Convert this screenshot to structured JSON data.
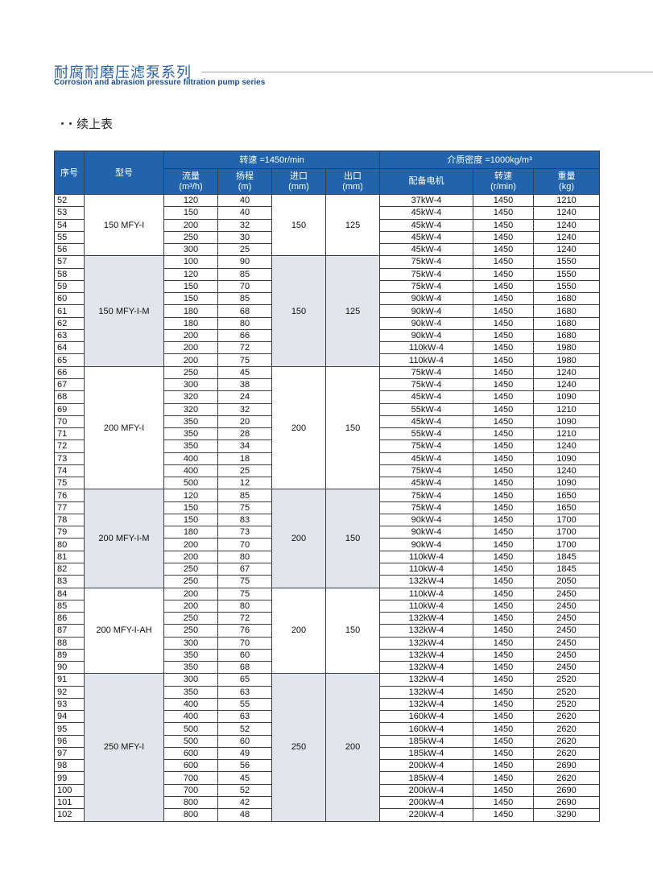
{
  "header": {
    "title": "耐腐耐磨压滤泵系列",
    "subtitle": "Corrosion and abrasion pressure filtration pump series"
  },
  "section_label": "续上表",
  "table": {
    "columns": {
      "seq": "序号",
      "model": "型号",
      "speed_note": "转速 =1450r/min",
      "density_note": "介质密度 =1000kg/m³",
      "flow": [
        "流量",
        "(m³/h)"
      ],
      "head": [
        "扬程",
        "(m)"
      ],
      "inlet": [
        "进口",
        "(mm)"
      ],
      "outlet": [
        "出口",
        "(mm)"
      ],
      "motor": "配备电机",
      "speed": [
        "转速",
        "(r/min)"
      ],
      "weight": [
        "重量",
        "(kg)"
      ]
    },
    "groups": [
      {
        "model": "150 MFY-I",
        "inlet": 150,
        "outlet": 125,
        "rows": [
          [
            52,
            120,
            40,
            "37kW-4",
            1450,
            1210
          ],
          [
            53,
            150,
            40,
            "45kW-4",
            1450,
            1240
          ],
          [
            54,
            200,
            32,
            "45kW-4",
            1450,
            1240
          ],
          [
            55,
            250,
            30,
            "45kW-4",
            1450,
            1240
          ],
          [
            56,
            300,
            25,
            "45kW-4",
            1450,
            1240
          ]
        ]
      },
      {
        "model": "150 MFY-I-M",
        "inlet": 150,
        "outlet": 125,
        "rows": [
          [
            57,
            100,
            90,
            "75kW-4",
            1450,
            1550
          ],
          [
            58,
            120,
            85,
            "75kW-4",
            1450,
            1550
          ],
          [
            59,
            150,
            70,
            "75kW-4",
            1450,
            1550
          ],
          [
            60,
            150,
            85,
            "90kW-4",
            1450,
            1680
          ],
          [
            61,
            180,
            68,
            "90kW-4",
            1450,
            1680
          ],
          [
            62,
            180,
            80,
            "90kW-4",
            1450,
            1680
          ],
          [
            63,
            200,
            66,
            "90kW-4",
            1450,
            1680
          ],
          [
            64,
            200,
            72,
            "110kW-4",
            1450,
            1980
          ],
          [
            65,
            200,
            75,
            "110kW-4",
            1450,
            1980
          ]
        ]
      },
      {
        "model": "200 MFY-I",
        "inlet": 200,
        "outlet": 150,
        "rows": [
          [
            66,
            250,
            45,
            "75kW-4",
            1450,
            1240
          ],
          [
            67,
            300,
            38,
            "75kW-4",
            1450,
            1240
          ],
          [
            68,
            320,
            24,
            "45kW-4",
            1450,
            1090
          ],
          [
            69,
            320,
            32,
            "55kW-4",
            1450,
            1210
          ],
          [
            70,
            350,
            20,
            "45kW-4",
            1450,
            1090
          ],
          [
            71,
            350,
            28,
            "55kW-4",
            1450,
            1210
          ],
          [
            72,
            350,
            34,
            "75kW-4",
            1450,
            1240
          ],
          [
            73,
            400,
            18,
            "45kW-4",
            1450,
            1090
          ],
          [
            74,
            400,
            25,
            "75kW-4",
            1450,
            1240
          ],
          [
            75,
            500,
            12,
            "45kW-4",
            1450,
            1090
          ]
        ]
      },
      {
        "model": "200 MFY-I-M",
        "inlet": 200,
        "outlet": 150,
        "rows": [
          [
            76,
            120,
            85,
            "75kW-4",
            1450,
            1650
          ],
          [
            77,
            150,
            75,
            "75kW-4",
            1450,
            1650
          ],
          [
            78,
            150,
            83,
            "90kW-4",
            1450,
            1700
          ],
          [
            79,
            180,
            73,
            "90kW-4",
            1450,
            1700
          ],
          [
            80,
            200,
            70,
            "90kW-4",
            1450,
            1700
          ],
          [
            81,
            200,
            80,
            "110kW-4",
            1450,
            1845
          ],
          [
            82,
            250,
            67,
            "110kW-4",
            1450,
            1845
          ],
          [
            83,
            250,
            75,
            "132kW-4",
            1450,
            2050
          ]
        ]
      },
      {
        "model": "200 MFY-I-AH",
        "inlet": 200,
        "outlet": 150,
        "rows": [
          [
            84,
            200,
            75,
            "110kW-4",
            1450,
            2450
          ],
          [
            85,
            200,
            80,
            "110kW-4",
            1450,
            2450
          ],
          [
            86,
            250,
            72,
            "132kW-4",
            1450,
            2450
          ],
          [
            87,
            250,
            76,
            "132kW-4",
            1450,
            2450
          ],
          [
            88,
            300,
            70,
            "132kW-4",
            1450,
            2450
          ],
          [
            89,
            350,
            60,
            "132kW-4",
            1450,
            2450
          ],
          [
            90,
            350,
            68,
            "132kW-4",
            1450,
            2450
          ]
        ]
      },
      {
        "model": "250 MFY-I",
        "inlet": 250,
        "outlet": 200,
        "rows": [
          [
            91,
            300,
            65,
            "132kW-4",
            1450,
            2520
          ],
          [
            92,
            350,
            63,
            "132kW-4",
            1450,
            2520
          ],
          [
            93,
            400,
            55,
            "132kW-4",
            1450,
            2520
          ],
          [
            94,
            400,
            63,
            "160kW-4",
            1450,
            2620
          ],
          [
            95,
            500,
            52,
            "160kW-4",
            1450,
            2620
          ],
          [
            96,
            500,
            60,
            "185kW-4",
            1450,
            2620
          ],
          [
            97,
            600,
            49,
            "185kW-4",
            1450,
            2620
          ],
          [
            98,
            600,
            56,
            "200kW-4",
            1450,
            2690
          ],
          [
            99,
            700,
            45,
            "185kW-4",
            1450,
            2620
          ],
          [
            100,
            700,
            52,
            "200kW-4",
            1450,
            2690
          ],
          [
            101,
            800,
            42,
            "200kW-4",
            1450,
            2690
          ],
          [
            102,
            800,
            48,
            "220kW-4",
            1450,
            3290
          ]
        ]
      }
    ]
  }
}
